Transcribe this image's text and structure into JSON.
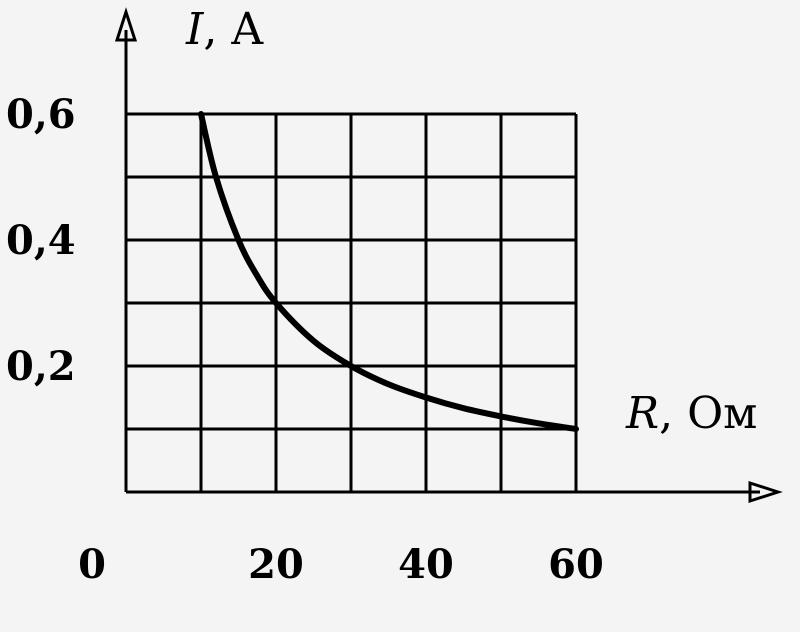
{
  "chart_data": {
    "type": "line",
    "xlabel": "R, Ом",
    "ylabel": "I, A",
    "xlabel_var": "R",
    "xlabel_unit": ", Ом",
    "ylabel_var": "I",
    "ylabel_unit": ", A",
    "origin_label": "0",
    "xlim": [
      0,
      60
    ],
    "ylim": [
      0,
      0.6
    ],
    "x_ticks": [
      {
        "value": 20,
        "label": "20"
      },
      {
        "value": 40,
        "label": "40"
      },
      {
        "value": 60,
        "label": "60"
      }
    ],
    "y_ticks": [
      {
        "value": 0.2,
        "label": "0,2"
      },
      {
        "value": 0.4,
        "label": "0,4"
      },
      {
        "value": 0.6,
        "label": "0,6"
      }
    ],
    "grid": true,
    "series": [
      {
        "x": [
          10,
          12,
          15,
          17.5,
          20,
          25,
          30,
          35,
          40,
          45,
          50,
          55,
          60
        ],
        "y": [
          0.6,
          0.5,
          0.4,
          0.343,
          0.3,
          0.24,
          0.2,
          0.171,
          0.15,
          0.133,
          0.12,
          0.109,
          0.1
        ]
      }
    ]
  }
}
